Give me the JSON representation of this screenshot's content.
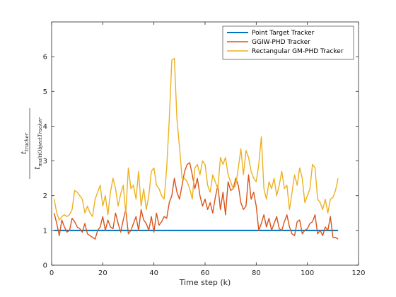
{
  "chart_data": {
    "type": "line",
    "xlabel": "Time step (k)",
    "ylabel_numerator": "t_{tracker}",
    "ylabel_denominator": "t_{multiObjectTracker}",
    "xlim": [
      0,
      120
    ],
    "ylim": [
      0,
      7
    ],
    "xticks": [
      0,
      20,
      40,
      60,
      80,
      100,
      120
    ],
    "yticks": [
      0,
      1,
      2,
      3,
      4,
      5,
      6
    ],
    "grid": false,
    "legend_position": "top-right",
    "x": [
      1,
      2,
      3,
      4,
      5,
      6,
      7,
      8,
      9,
      10,
      11,
      12,
      13,
      14,
      15,
      16,
      17,
      18,
      19,
      20,
      21,
      22,
      23,
      24,
      25,
      26,
      27,
      28,
      29,
      30,
      31,
      32,
      33,
      34,
      35,
      36,
      37,
      38,
      39,
      40,
      41,
      42,
      43,
      44,
      45,
      46,
      47,
      48,
      49,
      50,
      51,
      52,
      53,
      54,
      55,
      56,
      57,
      58,
      59,
      60,
      61,
      62,
      63,
      64,
      65,
      66,
      67,
      68,
      69,
      70,
      71,
      72,
      73,
      74,
      75,
      76,
      77,
      78,
      79,
      80,
      81,
      82,
      83,
      84,
      85,
      86,
      87,
      88,
      89,
      90,
      91,
      92,
      93,
      94,
      95,
      96,
      97,
      98,
      99,
      100,
      101,
      102,
      103,
      104,
      105,
      106,
      107,
      108,
      109,
      110,
      111,
      112
    ],
    "series": [
      {
        "name": "Point Target Tracker",
        "color": "#0072BD",
        "values": [
          1,
          1,
          1,
          1,
          1,
          1,
          1,
          1,
          1,
          1,
          1,
          1,
          1,
          1,
          1,
          1,
          1,
          1,
          1,
          1,
          1,
          1,
          1,
          1,
          1,
          1,
          1,
          1,
          1,
          1,
          1,
          1,
          1,
          1,
          1,
          1,
          1,
          1,
          1,
          1,
          1,
          1,
          1,
          1,
          1,
          1,
          1,
          1,
          1,
          1,
          1,
          1,
          1,
          1,
          1,
          1,
          1,
          1,
          1,
          1,
          1,
          1,
          1,
          1,
          1,
          1,
          1,
          1,
          1,
          1,
          1,
          1,
          1,
          1,
          1,
          1,
          1,
          1,
          1,
          1,
          1,
          1,
          1,
          1,
          1,
          1,
          1,
          1,
          1,
          1,
          1,
          1,
          1,
          1,
          1,
          1,
          1,
          1,
          1,
          1,
          1,
          1,
          1,
          1,
          1,
          1,
          1,
          1,
          1,
          1,
          1,
          1
        ]
      },
      {
        "name": "GGIW-PHD Tracker",
        "color": "#D95319",
        "values": [
          1.5,
          1.2,
          0.85,
          1.3,
          1.1,
          0.95,
          1.0,
          1.35,
          1.25,
          1.1,
          1.05,
          0.95,
          1.2,
          0.9,
          0.85,
          0.8,
          0.75,
          1.0,
          1.1,
          1.4,
          1.0,
          1.3,
          1.1,
          1.05,
          1.5,
          1.2,
          0.95,
          1.3,
          1.6,
          0.9,
          1.0,
          1.2,
          1.4,
          1.0,
          1.6,
          1.3,
          1.2,
          1.0,
          1.4,
          0.95,
          1.5,
          1.15,
          1.25,
          1.4,
          1.35,
          1.8,
          2.0,
          2.5,
          2.1,
          1.9,
          2.3,
          2.7,
          2.9,
          2.95,
          2.6,
          2.2,
          2.5,
          2.0,
          1.7,
          1.9,
          1.6,
          1.8,
          1.5,
          1.95,
          2.3,
          1.6,
          2.1,
          1.45,
          2.4,
          2.15,
          2.2,
          2.5,
          2.3,
          1.8,
          1.6,
          1.7,
          2.6,
          1.9,
          2.1,
          1.7,
          1.0,
          1.2,
          1.45,
          1.1,
          1.35,
          1.0,
          1.2,
          1.4,
          1.05,
          1.0,
          1.25,
          1.45,
          1.1,
          0.9,
          0.85,
          1.25,
          1.3,
          0.9,
          1.0,
          1.05,
          1.2,
          1.25,
          1.45,
          0.9,
          1.0,
          0.85,
          1.1,
          1.0,
          1.4,
          0.8,
          0.8,
          0.75
        ]
      },
      {
        "name": "Rectangular GM-PHD Tracker",
        "color": "#EDB120",
        "values": [
          1.9,
          1.5,
          1.3,
          1.4,
          1.45,
          1.4,
          1.45,
          1.6,
          2.15,
          2.1,
          2.0,
          1.9,
          1.5,
          1.7,
          1.5,
          1.4,
          1.9,
          2.1,
          2.3,
          1.7,
          2.0,
          1.45,
          2.1,
          2.5,
          2.2,
          1.7,
          2.05,
          2.3,
          1.5,
          2.8,
          2.2,
          2.3,
          1.9,
          2.7,
          1.7,
          2.2,
          1.6,
          2.0,
          2.7,
          2.8,
          2.3,
          2.2,
          2.0,
          1.9,
          2.8,
          4.2,
          5.9,
          5.95,
          4.2,
          3.4,
          2.5,
          2.5,
          2.4,
          2.2,
          1.9,
          2.8,
          2.9,
          2.6,
          3.0,
          2.9,
          2.3,
          2.1,
          2.6,
          2.4,
          2.2,
          3.1,
          2.9,
          3.1,
          2.6,
          2.4,
          2.2,
          2.3,
          2.8,
          3.35,
          2.6,
          3.3,
          3.1,
          2.7,
          2.5,
          2.4,
          2.9,
          3.7,
          2.2,
          1.9,
          2.4,
          2.2,
          2.5,
          2.0,
          2.3,
          2.7,
          2.2,
          2.3,
          1.6,
          2.1,
          2.6,
          2.3,
          2.8,
          2.5,
          1.8,
          2.0,
          2.2,
          2.9,
          2.8,
          1.9,
          1.8,
          1.6,
          1.9,
          1.5,
          1.9,
          1.95,
          2.15,
          2.5
        ]
      }
    ]
  }
}
